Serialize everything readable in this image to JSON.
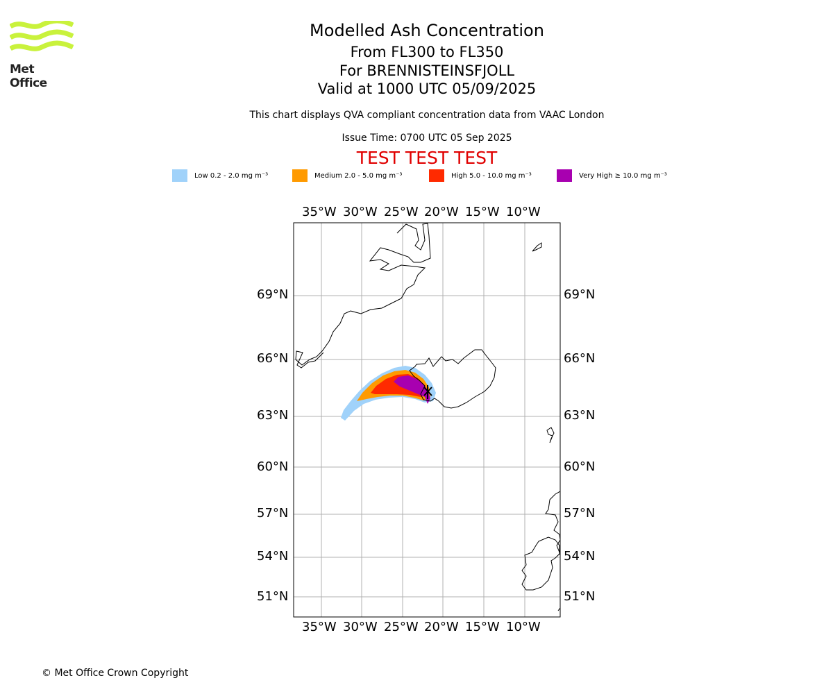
{
  "logo": {
    "wordmark": "Met Office",
    "wave_color": "#c9f23c"
  },
  "header": {
    "title": "Modelled Ash Concentration",
    "flight_levels": "From FL300 to FL350",
    "volcano": "For BRENNISTEINSFJOLL",
    "valid": "Valid at 1000 UTC 05/09/2025",
    "note": "This chart displays QVA compliant concentration data from VAAC London",
    "issue_time": "Issue Time: 0700 UTC 05 Sep 2025",
    "test_banner": "TEST TEST TEST",
    "test_color": "#e00000"
  },
  "legend": [
    {
      "label": "Low 0.2 - 2.0 mg m⁻³",
      "color": "#a0d2fa"
    },
    {
      "label": "Medium 2.0 - 5.0 mg m⁻³",
      "color": "#ff9a00"
    },
    {
      "label": "High 5.0 - 10.0 mg m⁻³",
      "color": "#ff2a00"
    },
    {
      "label": "Very High ≥ 10.0 mg m⁻³",
      "color": "#a800b0"
    }
  ],
  "map": {
    "lon_labels": [
      "35°W",
      "30°W",
      "25°W",
      "20°W",
      "15°W",
      "10°W"
    ],
    "lat_labels": [
      "69°N",
      "66°N",
      "63°N",
      "60°N",
      "57°N",
      "54°N",
      "51°N"
    ],
    "gridline_color": "#b0b0b0",
    "coastline_color": "#000000"
  },
  "footer": {
    "copyright": "© Met Office Crown Copyright"
  }
}
